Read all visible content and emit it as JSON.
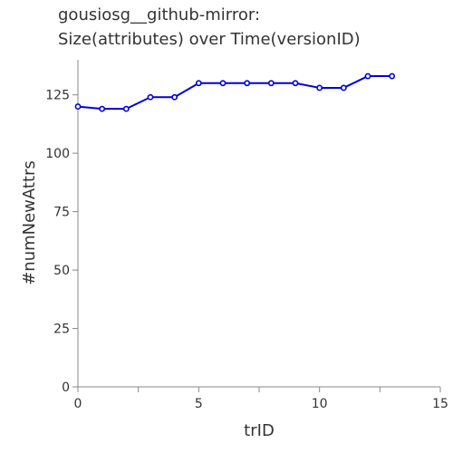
{
  "chart_data": {
    "type": "line",
    "title_lines": [
      "gousiosg__github-mirror:",
      "Size(attributes) over Time(versionID)"
    ],
    "xlabel": "trID",
    "ylabel": "#numNewAttrs",
    "xlim": [
      0,
      15
    ],
    "ylim": [
      0,
      140
    ],
    "x_ticks": [
      0,
      5,
      10,
      15
    ],
    "y_ticks": [
      0,
      25,
      50,
      75,
      100,
      125
    ],
    "grid": false,
    "series": [
      {
        "color": "#0000dd",
        "x": [
          0,
          1,
          2,
          3,
          4,
          5,
          6,
          7,
          8,
          9,
          10,
          11,
          12,
          13
        ],
        "y": [
          120,
          119,
          119,
          124,
          124,
          130,
          130,
          130,
          130,
          130,
          128,
          128,
          133,
          133
        ]
      }
    ]
  }
}
